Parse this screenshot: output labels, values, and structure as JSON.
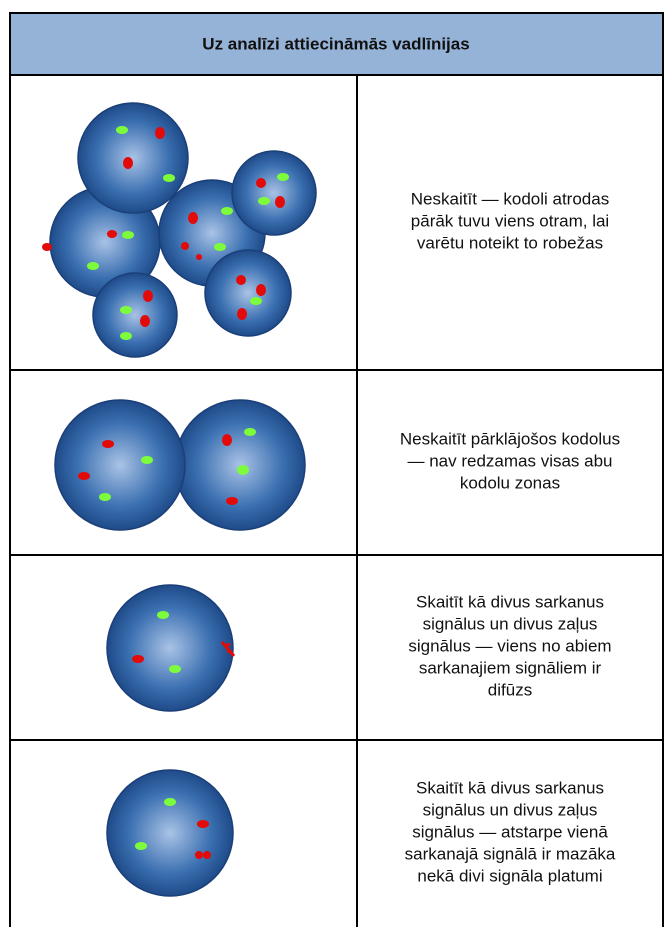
{
  "header": {
    "title": "Uz analīzi attiecināmās vadlīnijas"
  },
  "rows": [
    {
      "lines": [
        "Neskaitīt — kodoli atrodas",
        "pārāk tuvu viens otram, lai",
        "varētu noteikt to robežas"
      ]
    },
    {
      "lines": [
        "Neskaitīt pārklājošos kodolus",
        "— nav redzamas visas abu",
        "kodolu zonas"
      ]
    },
    {
      "lines": [
        "Skaitīt kā divus sarkanus",
        "signālus un divus zaļus",
        "signālus — viens no abiem",
        "sarkanajiem signāliem ir",
        "difūzs"
      ]
    },
    {
      "lines": [
        "Skaitīt kā divus sarkanus",
        "signālus un divus zaļus",
        "signālus — atstarpe vienā",
        "sarkanajā signālā ir mazāka",
        "nekā divi signāla platumi"
      ]
    }
  ]
}
